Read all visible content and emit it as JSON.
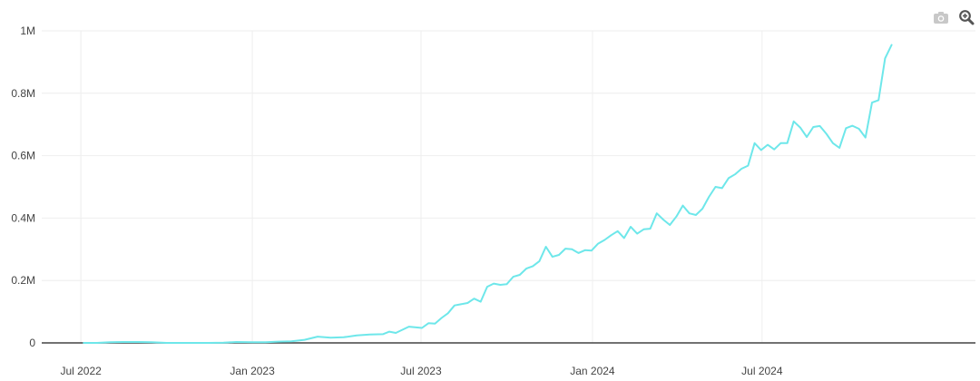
{
  "toolbar": {
    "camera_icon": "camera-icon",
    "zoom_icon": "zoom-icon"
  },
  "colors": {
    "line": "#6ee7ea",
    "grid": "#eeeeee",
    "zero_line": "#444444",
    "icon_camera": "#c8c8c8",
    "icon_zoom": "#555555"
  },
  "chart_data": {
    "type": "line",
    "title": "",
    "xlabel": "",
    "ylabel": "",
    "grid": true,
    "legend": "none",
    "xlim": [
      "2022-05-20",
      "2025-02-15"
    ],
    "ylim": [
      0,
      1000000
    ],
    "x_ticks": [
      {
        "value": "2022-07-01",
        "label": "Jul 2022"
      },
      {
        "value": "2023-01-01",
        "label": "Jan 2023"
      },
      {
        "value": "2023-07-01",
        "label": "Jul 2023"
      },
      {
        "value": "2024-01-01",
        "label": "Jan 2024"
      },
      {
        "value": "2024-07-01",
        "label": "Jul 2024"
      }
    ],
    "y_ticks": [
      {
        "value": 0,
        "label": "0"
      },
      {
        "value": 200000,
        "label": "0.2M"
      },
      {
        "value": 400000,
        "label": "0.4M"
      },
      {
        "value": 600000,
        "label": "0.6M"
      },
      {
        "value": 800000,
        "label": "0.8M"
      },
      {
        "value": 1000000,
        "label": "1M"
      }
    ],
    "series": [
      {
        "color": "#6ee7ea",
        "points": [
          [
            "2022-07-04",
            0
          ],
          [
            "2022-07-18",
            0
          ],
          [
            "2022-08-01",
            2000
          ],
          [
            "2022-08-15",
            3000
          ],
          [
            "2022-09-01",
            3000
          ],
          [
            "2022-09-15",
            2000
          ],
          [
            "2022-10-01",
            0
          ],
          [
            "2022-10-15",
            0
          ],
          [
            "2022-11-01",
            0
          ],
          [
            "2022-11-15",
            0
          ],
          [
            "2022-12-01",
            1000
          ],
          [
            "2022-12-15",
            3000
          ],
          [
            "2023-01-01",
            2000
          ],
          [
            "2023-01-15",
            2000
          ],
          [
            "2023-01-29",
            4000
          ],
          [
            "2023-02-12",
            5000
          ],
          [
            "2023-02-26",
            10000
          ],
          [
            "2023-03-12",
            20000
          ],
          [
            "2023-03-26",
            17000
          ],
          [
            "2023-04-09",
            18000
          ],
          [
            "2023-04-23",
            24000
          ],
          [
            "2023-05-07",
            27000
          ],
          [
            "2023-05-21",
            28000
          ],
          [
            "2023-05-28",
            36000
          ],
          [
            "2023-06-04",
            32000
          ],
          [
            "2023-06-18",
            52000
          ],
          [
            "2023-07-02",
            48000
          ],
          [
            "2023-07-09",
            63000
          ],
          [
            "2023-07-16",
            62000
          ],
          [
            "2023-07-23",
            80000
          ],
          [
            "2023-07-30",
            95000
          ],
          [
            "2023-08-06",
            120000
          ],
          [
            "2023-08-20",
            128000
          ],
          [
            "2023-08-27",
            142000
          ],
          [
            "2023-09-03",
            132000
          ],
          [
            "2023-09-10",
            180000
          ],
          [
            "2023-09-17",
            190000
          ],
          [
            "2023-09-24",
            186000
          ],
          [
            "2023-10-01",
            188000
          ],
          [
            "2023-10-08",
            212000
          ],
          [
            "2023-10-15",
            218000
          ],
          [
            "2023-10-22",
            238000
          ],
          [
            "2023-10-29",
            246000
          ],
          [
            "2023-11-05",
            262000
          ],
          [
            "2023-11-12",
            308000
          ],
          [
            "2023-11-19",
            276000
          ],
          [
            "2023-11-26",
            282000
          ],
          [
            "2023-12-03",
            302000
          ],
          [
            "2023-12-10",
            300000
          ],
          [
            "2023-12-17",
            288000
          ],
          [
            "2023-12-24",
            297000
          ],
          [
            "2023-12-31",
            296000
          ],
          [
            "2024-01-07",
            318000
          ],
          [
            "2024-01-14",
            330000
          ],
          [
            "2024-01-21",
            345000
          ],
          [
            "2024-01-28",
            358000
          ],
          [
            "2024-02-04",
            336000
          ],
          [
            "2024-02-11",
            372000
          ],
          [
            "2024-02-18",
            350000
          ],
          [
            "2024-02-25",
            364000
          ],
          [
            "2024-03-03",
            366000
          ],
          [
            "2024-03-10",
            415000
          ],
          [
            "2024-03-17",
            395000
          ],
          [
            "2024-03-24",
            378000
          ],
          [
            "2024-03-31",
            405000
          ],
          [
            "2024-04-07",
            440000
          ],
          [
            "2024-04-14",
            415000
          ],
          [
            "2024-04-21",
            410000
          ],
          [
            "2024-04-28",
            430000
          ],
          [
            "2024-05-05",
            468000
          ],
          [
            "2024-05-12",
            500000
          ],
          [
            "2024-05-19",
            496000
          ],
          [
            "2024-05-26",
            528000
          ],
          [
            "2024-06-02",
            540000
          ],
          [
            "2024-06-09",
            558000
          ],
          [
            "2024-06-16",
            568000
          ],
          [
            "2024-06-23",
            640000
          ],
          [
            "2024-06-30",
            618000
          ],
          [
            "2024-07-07",
            635000
          ],
          [
            "2024-07-14",
            620000
          ],
          [
            "2024-07-21",
            640000
          ],
          [
            "2024-07-28",
            640000
          ],
          [
            "2024-08-04",
            710000
          ],
          [
            "2024-08-11",
            690000
          ],
          [
            "2024-08-18",
            660000
          ],
          [
            "2024-08-25",
            692000
          ],
          [
            "2024-09-01",
            695000
          ],
          [
            "2024-09-08",
            670000
          ],
          [
            "2024-09-15",
            640000
          ],
          [
            "2024-09-22",
            625000
          ],
          [
            "2024-09-29",
            688000
          ],
          [
            "2024-10-06",
            696000
          ],
          [
            "2024-10-13",
            686000
          ],
          [
            "2024-10-20",
            658000
          ],
          [
            "2024-10-27",
            770000
          ],
          [
            "2024-11-03",
            778000
          ],
          [
            "2024-11-10",
            912000
          ],
          [
            "2024-11-17",
            955000
          ]
        ]
      }
    ]
  }
}
